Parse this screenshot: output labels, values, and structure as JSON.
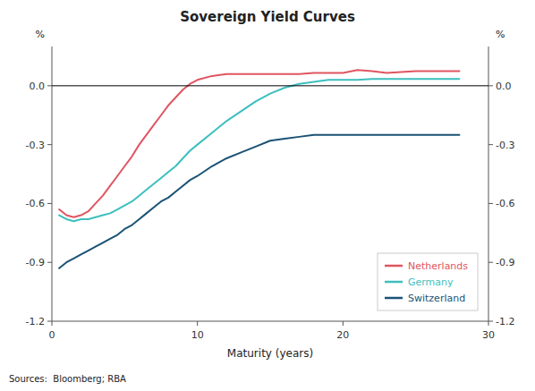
{
  "chart_data": {
    "type": "line",
    "title": "Sovereign Yield Curves",
    "x_label": "Maturity (years)",
    "y_label": "%",
    "y2_label": "%",
    "source": "Sources:  Bloomberg; RBA",
    "x": [
      0.5,
      1.0,
      1.5,
      2.0,
      2.5,
      3.0,
      3.5,
      4.0,
      4.5,
      5.0,
      5.5,
      6.0,
      6.5,
      7.0,
      7.5,
      8.0,
      8.5,
      9.0,
      9.5,
      10.0,
      11.0,
      12.0,
      13.0,
      14.0,
      15.0,
      16.0,
      17.0,
      18.0,
      19.0,
      20.0,
      21.0,
      22.0,
      23.0,
      24.0,
      25.0,
      26.0,
      27.0,
      28.0
    ],
    "series": [
      {
        "name": "Netherlands",
        "color": "#e05560",
        "values": [
          -0.63,
          -0.66,
          -0.67,
          -0.66,
          -0.64,
          -0.6,
          -0.56,
          -0.51,
          -0.46,
          -0.41,
          -0.36,
          -0.3,
          -0.25,
          -0.2,
          -0.15,
          -0.1,
          -0.06,
          -0.02,
          0.01,
          0.03,
          0.05,
          0.06,
          0.06,
          0.06,
          0.06,
          0.06,
          0.06,
          0.065,
          0.065,
          0.065,
          0.08,
          0.075,
          0.065,
          0.07,
          0.075,
          0.075,
          0.075,
          0.075
        ]
      },
      {
        "name": "Germany",
        "color": "#3dbfbf",
        "values": [
          -0.66,
          -0.68,
          -0.69,
          -0.68,
          -0.68,
          -0.67,
          -0.66,
          -0.65,
          -0.63,
          -0.61,
          -0.59,
          -0.56,
          -0.53,
          -0.5,
          -0.47,
          -0.44,
          -0.41,
          -0.37,
          -0.33,
          -0.3,
          -0.24,
          -0.18,
          -0.13,
          -0.08,
          -0.04,
          -0.01,
          0.01,
          0.02,
          0.03,
          0.03,
          0.03,
          0.035,
          0.035,
          0.035,
          0.035,
          0.035,
          0.035,
          0.035
        ]
      },
      {
        "name": "Switzerland",
        "color": "#1a5276",
        "values": [
          -0.93,
          -0.9,
          -0.88,
          -0.86,
          -0.84,
          -0.82,
          -0.8,
          -0.78,
          -0.76,
          -0.73,
          -0.71,
          -0.68,
          -0.65,
          -0.62,
          -0.59,
          -0.57,
          -0.54,
          -0.51,
          -0.48,
          -0.46,
          -0.41,
          -0.37,
          -0.34,
          -0.31,
          -0.28,
          -0.27,
          -0.26,
          -0.25,
          -0.25,
          -0.25,
          -0.25,
          -0.25,
          -0.25,
          -0.25,
          -0.25,
          -0.25,
          -0.25,
          -0.25
        ]
      }
    ],
    "xlim": [
      0,
      30
    ],
    "xticks": [
      0,
      10,
      20,
      30
    ],
    "ylim": [
      -1.2,
      0.2
    ],
    "yticks": [
      -1.2,
      -0.9,
      -0.6,
      -0.3,
      {
        "value": 0.0,
        "label": "0.0"
      }
    ],
    "y2lim": [
      -1.2,
      0.2
    ],
    "y2ticks": [
      -1.2,
      -0.9,
      -0.6,
      -0.3,
      {
        "value": 0.0,
        "label": "0.0"
      }
    ],
    "reference_lines": [
      0.0
    ],
    "grid": false,
    "legend": "lower right"
  }
}
